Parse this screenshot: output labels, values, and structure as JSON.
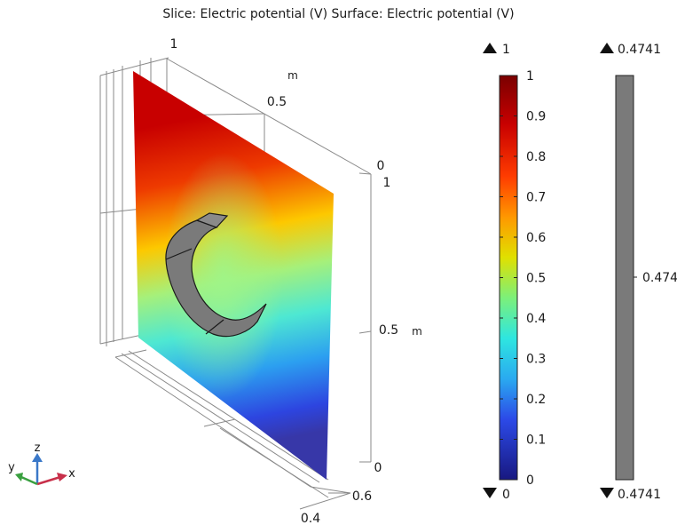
{
  "title": "Slice: Electric potential (V)  Surface: Electric potential (V)",
  "scene": {
    "axis_unit": "m",
    "ticks": {
      "back_top": [
        "1",
        "0.5",
        "0"
      ],
      "right_z": [
        "1",
        "0.5",
        "0"
      ],
      "bottom_x": [
        "0.6",
        "0.4"
      ]
    },
    "colors": {
      "slice_gradient": [
        "#d40000",
        "#fdd000",
        "#7ff07a",
        "#34e6f0",
        "#2b55e6",
        "#3434a8"
      ],
      "surface": "#7a7a7a"
    }
  },
  "triad": {
    "x_label": "x",
    "y_label": "y",
    "z_label": "z"
  },
  "chart_data": [
    {
      "type": "heatmap",
      "name": "Slice: Electric potential (V)",
      "colorscale": "rainbow",
      "range": [
        0,
        1
      ],
      "max_label": "1",
      "min_label": "0",
      "ticks": [
        "1",
        "0.9",
        "0.8",
        "0.7",
        "0.6",
        "0.5",
        "0.4",
        "0.3",
        "0.2",
        "0.1",
        "0"
      ],
      "tick_values": [
        1,
        0.9,
        0.8,
        0.7,
        0.6,
        0.5,
        0.4,
        0.3,
        0.2,
        0.1,
        0
      ]
    },
    {
      "type": "heatmap",
      "name": "Surface: Electric potential (V)",
      "color": "#7a7a7a",
      "range": [
        0.4741,
        0.4741
      ],
      "max_label": "0.4741",
      "min_label": "0.4741",
      "ticks": [
        "0.474"
      ],
      "tick_values": [
        0.474
      ]
    }
  ]
}
